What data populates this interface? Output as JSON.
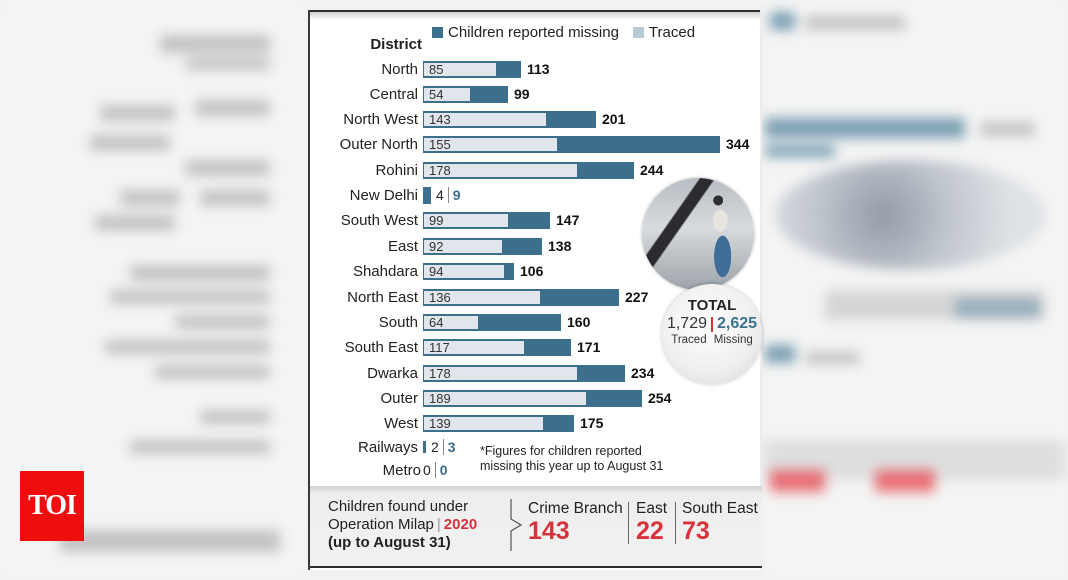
{
  "logo": {
    "text": "TOI",
    "color": "#f00d0d"
  },
  "legend": {
    "missing_label": "Children reported missing",
    "traced_label": "Traced",
    "missing_color": "#3b6f8c",
    "traced_color": "#b8c9d6"
  },
  "axis_header": "District",
  "totals": {
    "title": "TOTAL",
    "traced": "1,729",
    "missing": "2,625",
    "traced_caption": "Traced",
    "missing_caption": "Missing"
  },
  "small_rows": [
    {
      "district": "Railways",
      "traced": "2",
      "missing": "3"
    },
    {
      "district": "Metro",
      "traced": "0",
      "missing": "0"
    }
  ],
  "footnote": {
    "line1": "*Figures for children reported",
    "line2": "missing this year up to August 31"
  },
  "milap": {
    "line1": "Children found under",
    "line2": "Operation Milap",
    "year": "2020",
    "line3": "(up to August 31)",
    "units": [
      {
        "name": "Crime Branch",
        "value": "143"
      },
      {
        "name": "East",
        "value": "22"
      },
      {
        "name": "South East",
        "value": "73"
      }
    ]
  },
  "chart_data": {
    "type": "bar",
    "orientation": "horizontal",
    "title": "",
    "xlabel": "",
    "ylabel": "District",
    "legend_position": "top",
    "grid": false,
    "categories": [
      "North",
      "Central",
      "North West",
      "Outer North",
      "Rohini",
      "New Delhi",
      "South West",
      "East",
      "Shahdara",
      "North East",
      "South",
      "South East",
      "Dwarka",
      "Outer",
      "West",
      "Railways",
      "Metro"
    ],
    "series": [
      {
        "name": "Children reported missing",
        "values": [
          113,
          99,
          201,
          344,
          244,
          9,
          147,
          138,
          106,
          227,
          160,
          171,
          234,
          254,
          175,
          3,
          0
        ]
      },
      {
        "name": "Traced",
        "values": [
          85,
          54,
          143,
          155,
          178,
          4,
          99,
          92,
          94,
          136,
          64,
          117,
          178,
          189,
          139,
          2,
          0
        ]
      }
    ],
    "totals": {
      "traced": 1729,
      "missing": 2625
    },
    "annotations": [
      "*Figures for children reported missing this year up to August 31"
    ]
  }
}
